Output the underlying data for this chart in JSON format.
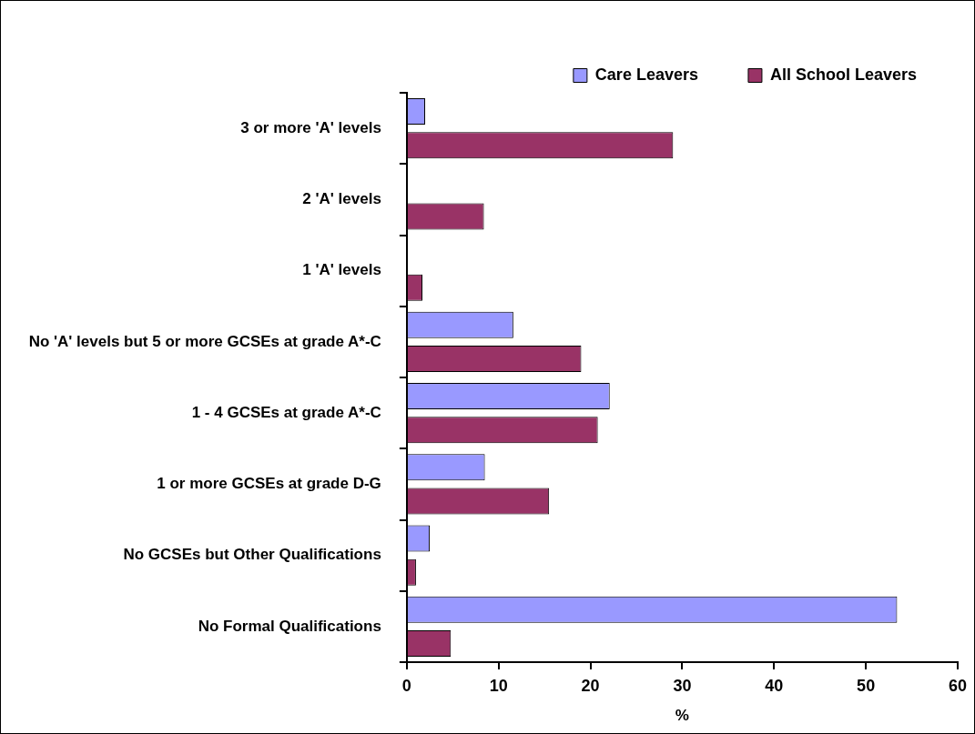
{
  "chart_data": {
    "type": "bar",
    "orientation": "horizontal",
    "xlabel": "%",
    "categories": [
      "3 or more 'A' levels",
      "2 'A' levels",
      "1 'A' levels",
      "No 'A' levels but 5 or more GCSEs at grade A*-C",
      "1 - 4 GCSEs at grade A*-C",
      "1 or more GCSEs at grade D-G",
      "No GCSEs but Other Qualifications",
      "No Formal Qualifications"
    ],
    "series": [
      {
        "name": "Care Leavers",
        "color": "#9999ff",
        "values": [
          2.0,
          0,
          0,
          11.6,
          22.1,
          8.5,
          2.5,
          53.4
        ]
      },
      {
        "name": "All School Leavers",
        "color": "#993366",
        "values": [
          29.0,
          8.4,
          1.7,
          19.0,
          20.8,
          15.5,
          1.0,
          4.8
        ]
      }
    ],
    "xlim": [
      0,
      60
    ],
    "xticks": [
      0,
      10,
      20,
      30,
      40,
      50,
      60
    ],
    "grid": false,
    "legend": "top right"
  }
}
